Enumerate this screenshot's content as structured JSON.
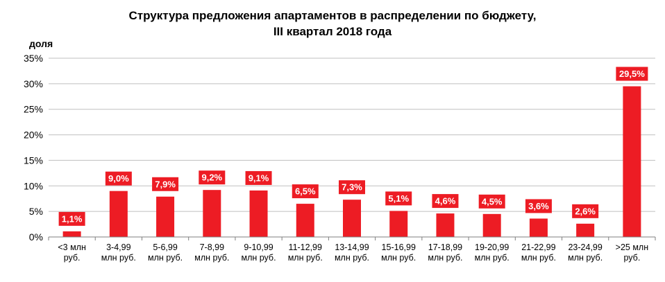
{
  "chart_data": {
    "type": "bar",
    "title": "Структура  предложения апартаментов в распределении по бюджету,",
    "subtitle": "III квартал 2018 года",
    "xlabel": "",
    "ylabel": "доля",
    "ylim": [
      0,
      35
    ],
    "yticks": [
      0,
      5,
      10,
      15,
      20,
      25,
      30,
      35
    ],
    "ytick_labels": [
      "0%",
      "5%",
      "10%",
      "15%",
      "20%",
      "25%",
      "30%",
      "35%"
    ],
    "grid": true,
    "categories": [
      [
        "<3 млн",
        "руб."
      ],
      [
        "3-4,99",
        "млн руб."
      ],
      [
        "5-6,99",
        "млн руб."
      ],
      [
        "7-8,99",
        "млн руб."
      ],
      [
        "9-10,99",
        "млн руб."
      ],
      [
        "11-12,99",
        "млн руб."
      ],
      [
        "13-14,99",
        "млн руб."
      ],
      [
        "15-16,99",
        "млн руб."
      ],
      [
        "17-18,99",
        "млн руб."
      ],
      [
        "19-20,99",
        "млн руб."
      ],
      [
        "21-22,99",
        "млн руб."
      ],
      [
        "23-24,99",
        "млн руб."
      ],
      [
        ">25 млн",
        "руб."
      ]
    ],
    "values": [
      1.1,
      9.0,
      7.9,
      9.2,
      9.1,
      6.5,
      7.3,
      5.1,
      4.6,
      4.5,
      3.6,
      2.6,
      29.5
    ],
    "data_labels": [
      "1,1%",
      "9,0%",
      "7,9%",
      "9,2%",
      "9,1%",
      "6,5%",
      "7,3%",
      "5,1%",
      "4,6%",
      "4,5%",
      "3,6%",
      "2,6%",
      "29,5%"
    ],
    "bar_color": "#ED1C24",
    "label_bg_color": "#ED1C24",
    "label_text_color": "#FFFFFF"
  }
}
